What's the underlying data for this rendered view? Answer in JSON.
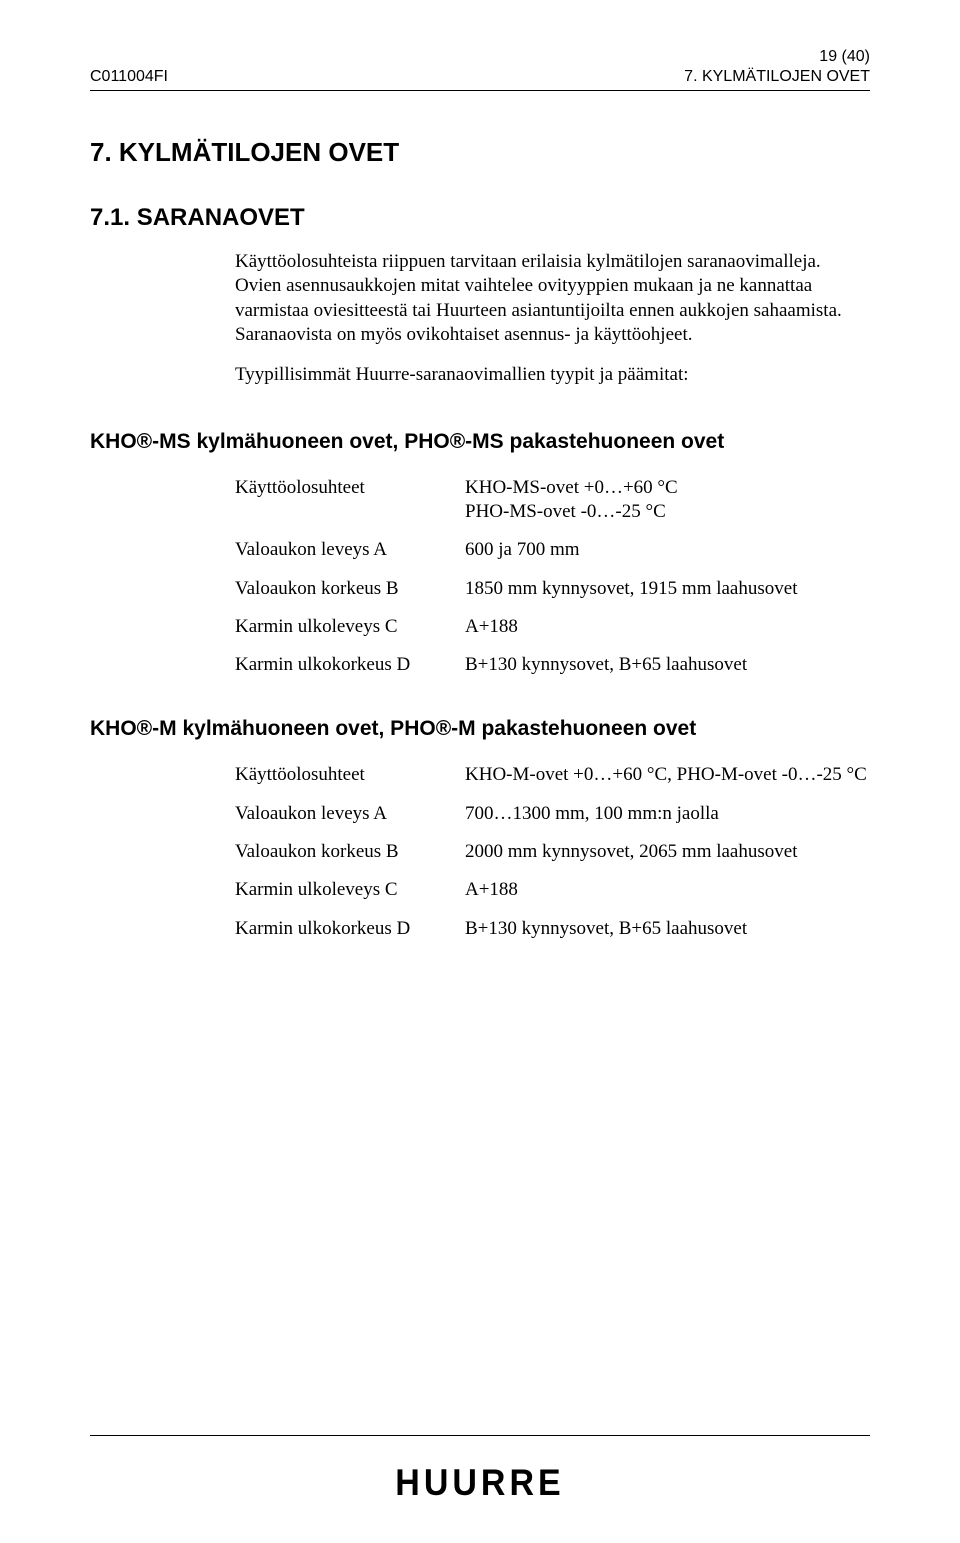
{
  "header": {
    "doc_id": "C011004FI",
    "page_no": "19 (40)",
    "section_ref": "7. KYLMÄTILOJEN OVET"
  },
  "headings": {
    "h1": "7. KYLMÄTILOJEN OVET",
    "h2": "7.1. SARANAOVET",
    "h3a": "KHO®-MS kylmähuoneen ovet, PHO®-MS pakastehuoneen ovet",
    "h3b": "KHO®-M kylmähuoneen ovet, PHO®-M pakastehuoneen ovet"
  },
  "intro": {
    "p1": "Käyttöolosuhteista riippuen tarvitaan erilaisia kylmätilojen saranaovimalleja. Ovien asennusaukkojen mitat vaihtelee ovityyppien mukaan ja ne kannattaa varmistaa oviesitteestä tai Huurteen asiantuntijoilta ennen aukkojen sahaamista. Saranaovista on myös ovikohtaiset asennus- ja käyttöohjeet.",
    "p2": "Tyypillisimmät Huurre-saranaovimallien tyypit ja päämitat:"
  },
  "spec_ms": {
    "r1_label": "Käyttöolosuhteet",
    "r1_val": "KHO-MS-ovet +0…+60 °C\nPHO-MS-ovet -0…-25 °C",
    "r2_label": "Valoaukon leveys  A",
    "r2_val": "600 ja 700 mm",
    "r3_label": "Valoaukon korkeus B",
    "r3_val": "1850 mm kynnysovet, 1915 mm laahusovet",
    "r4_label": "Karmin ulkoleveys C",
    "r4_val": "A+188",
    "r5_label": "Karmin ulkokorkeus D",
    "r5_val": "B+130 kynnysovet, B+65 laahusovet"
  },
  "spec_m": {
    "r1_label": "Käyttöolosuhteet",
    "r1_val": "KHO-M-ovet +0…+60 °C, PHO-M-ovet -0…-25 °C",
    "r2_label": "Valoaukon leveys  A",
    "r2_val": "700…1300 mm, 100 mm:n jaolla",
    "r3_label": "Valoaukon korkeus B",
    "r3_val": "2000 mm kynnysovet, 2065 mm laahusovet",
    "r4_label": "Karmin ulkoleveys C",
    "r4_val": "A+188",
    "r5_label": "Karmin ulkokorkeus D",
    "r5_val": "B+130 kynnysovet, B+65 laahusovet"
  },
  "footer": {
    "logo": "HUURRE"
  }
}
